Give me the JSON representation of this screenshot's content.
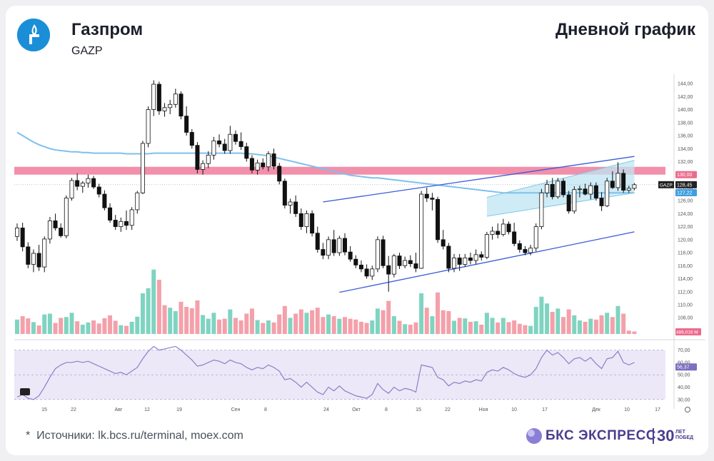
{
  "header": {
    "company": "Газпром",
    "ticker": "GAZP",
    "chart_title": "Дневной график"
  },
  "footer": {
    "source_mark": "*",
    "source": "Источники: lk.bcs.ru/terminal, moex.com",
    "brand": "БКС ЭКСПРЕСС",
    "brand_30": "30",
    "brand_30_sub": "ЛЕТ ПОБЕД"
  },
  "colors": {
    "up": "#ffffff",
    "down": "#111111",
    "vol_up": "#7fd4c1",
    "vol_down": "#f4a0aa",
    "ma": "#7ec0ee",
    "channel": "#3a5bd9",
    "resistance_zone": "#ee6a8f",
    "rsi": "#8b7fc6",
    "logo": "#1a8fd8",
    "brand": "#4a3f8f"
  },
  "chart_data": {
    "type": "candlestick",
    "price_axis": {
      "ticks": [
        "144,00",
        "142,00",
        "140,00",
        "138,00",
        "136,00",
        "134,00",
        "132,00",
        "130,00",
        "128,00",
        "126,00",
        "124,00",
        "122,00",
        "120,00",
        "118,00",
        "116,00",
        "114,00",
        "112,00",
        "110,00",
        "108,00",
        "106,00"
      ],
      "range": [
        105.5,
        145
      ]
    },
    "x_axis": {
      "ticks": [
        "15",
        "22",
        "Авг",
        "12",
        "19",
        "Сен",
        "8",
        "24",
        "Окт",
        "8",
        "15",
        "22",
        "Ноя",
        "10",
        "17",
        "Дек",
        "10",
        "17"
      ]
    },
    "last_price_label": {
      "text": "GAZP",
      "value": "128,45"
    },
    "level_labels": [
      {
        "value": "130,00"
      },
      {
        "value": "127,22"
      }
    ],
    "volume_label": "486,016 M",
    "candles": [
      [
        120.5,
        122.5,
        119.8,
        121.8
      ],
      [
        121.8,
        122.6,
        118.2,
        118.9
      ],
      [
        118.9,
        119.6,
        115.6,
        116.2
      ],
      [
        116.2,
        118.5,
        115.0,
        117.9
      ],
      [
        117.9,
        119.2,
        115.2,
        115.8
      ],
      [
        115.8,
        120.5,
        115.0,
        120.1
      ],
      [
        120.1,
        123.5,
        119.4,
        122.9
      ],
      [
        122.9,
        124.0,
        121.4,
        121.8
      ],
      [
        121.8,
        122.5,
        120.3,
        120.6
      ],
      [
        120.6,
        126.8,
        120.2,
        126.4
      ],
      [
        126.4,
        129.5,
        126.0,
        129.1
      ],
      [
        129.1,
        130.2,
        127.6,
        128.2
      ],
      [
        128.2,
        129.0,
        127.2,
        128.7
      ],
      [
        128.7,
        130.0,
        128.0,
        129.4
      ],
      [
        129.4,
        129.8,
        127.8,
        128.1
      ],
      [
        128.1,
        128.6,
        126.5,
        127.0
      ],
      [
        127.0,
        127.6,
        124.5,
        124.9
      ],
      [
        124.9,
        125.6,
        122.6,
        123.0
      ],
      [
        123.0,
        123.8,
        121.5,
        122.0
      ],
      [
        122.0,
        123.4,
        121.2,
        122.8
      ],
      [
        122.8,
        124.5,
        121.5,
        122.2
      ],
      [
        122.2,
        125.0,
        121.5,
        124.6
      ],
      [
        124.6,
        127.5,
        124.0,
        127.2
      ],
      [
        127.2,
        135.2,
        127.0,
        134.8
      ],
      [
        134.8,
        140.5,
        134.2,
        140.0
      ],
      [
        140.0,
        144.5,
        139.0,
        143.9
      ],
      [
        143.9,
        144.3,
        139.2,
        139.8
      ],
      [
        139.8,
        141.0,
        138.9,
        140.3
      ],
      [
        140.3,
        141.5,
        139.3,
        140.8
      ],
      [
        140.8,
        143.2,
        140.3,
        142.4
      ],
      [
        142.4,
        142.8,
        138.5,
        139.0
      ],
      [
        139.0,
        140.5,
        136.0,
        136.5
      ],
      [
        136.5,
        137.0,
        134.0,
        134.5
      ],
      [
        134.5,
        135.0,
        130.2,
        130.8
      ],
      [
        130.8,
        132.2,
        130.0,
        131.7
      ],
      [
        131.7,
        133.6,
        131.0,
        133.0
      ],
      [
        133.0,
        135.8,
        132.3,
        135.2
      ],
      [
        135.2,
        136.2,
        134.2,
        134.7
      ],
      [
        134.7,
        135.5,
        133.2,
        133.7
      ],
      [
        133.7,
        137.5,
        133.2,
        136.2
      ],
      [
        136.2,
        136.8,
        134.6,
        135.1
      ],
      [
        135.1,
        136.5,
        133.8,
        134.3
      ],
      [
        134.3,
        134.9,
        132.0,
        132.5
      ],
      [
        132.5,
        133.0,
        130.2,
        130.7
      ],
      [
        130.7,
        132.3,
        130.0,
        131.8
      ],
      [
        131.8,
        132.5,
        130.8,
        131.2
      ],
      [
        131.2,
        133.6,
        130.5,
        133.2
      ],
      [
        133.2,
        134.0,
        130.8,
        131.3
      ],
      [
        131.3,
        131.8,
        128.5,
        129.0
      ],
      [
        129.0,
        129.4,
        124.8,
        125.3
      ],
      [
        125.3,
        126.3,
        124.0,
        125.8
      ],
      [
        125.8,
        126.8,
        123.5,
        124.0
      ],
      [
        124.0,
        124.8,
        121.5,
        122.0
      ],
      [
        122.0,
        124.5,
        121.0,
        124.0
      ],
      [
        124.0,
        124.5,
        120.5,
        121.0
      ],
      [
        121.0,
        122.0,
        118.0,
        118.5
      ],
      [
        118.5,
        119.5,
        117.0,
        117.6
      ],
      [
        117.6,
        120.5,
        117.0,
        120.0
      ],
      [
        120.0,
        121.5,
        117.5,
        118.0
      ],
      [
        118.0,
        120.6,
        117.5,
        120.2
      ],
      [
        120.2,
        121.0,
        117.6,
        118.1
      ],
      [
        118.1,
        119.0,
        116.6,
        117.0
      ],
      [
        117.0,
        117.6,
        115.6,
        116.1
      ],
      [
        116.1,
        116.8,
        115.0,
        115.5
      ],
      [
        115.5,
        116.2,
        114.0,
        114.4
      ],
      [
        114.4,
        116.0,
        113.8,
        115.5
      ],
      [
        115.5,
        120.5,
        115.0,
        120.0
      ],
      [
        120.0,
        120.6,
        115.6,
        116.0
      ],
      [
        116.0,
        117.5,
        112.0,
        114.7
      ],
      [
        114.7,
        117.8,
        114.2,
        117.5
      ],
      [
        117.5,
        118.0,
        115.5,
        116.0
      ],
      [
        116.0,
        117.4,
        115.6,
        116.8
      ],
      [
        116.8,
        117.6,
        115.8,
        116.3
      ],
      [
        116.3,
        118.0,
        115.0,
        115.6
      ],
      [
        115.6,
        127.5,
        115.5,
        127.0
      ],
      [
        127.0,
        128.0,
        125.8,
        126.4
      ],
      [
        126.4,
        127.2,
        124.5,
        126.2
      ],
      [
        126.2,
        126.6,
        119.5,
        120.0
      ],
      [
        120.0,
        121.5,
        118.5,
        119.0
      ],
      [
        119.0,
        119.5,
        115.0,
        115.6
      ],
      [
        115.6,
        117.8,
        115.0,
        117.2
      ],
      [
        117.2,
        117.8,
        115.2,
        116.2
      ],
      [
        116.2,
        117.8,
        115.8,
        117.2
      ],
      [
        117.2,
        118.0,
        116.2,
        116.8
      ],
      [
        116.8,
        118.5,
        116.2,
        117.7
      ],
      [
        117.7,
        118.2,
        116.8,
        117.3
      ],
      [
        117.3,
        121.2,
        117.0,
        120.8
      ],
      [
        120.8,
        122.0,
        120.0,
        121.3
      ],
      [
        121.3,
        122.5,
        120.2,
        120.8
      ],
      [
        120.8,
        123.2,
        120.5,
        122.4
      ],
      [
        122.4,
        122.8,
        120.8,
        121.2
      ],
      [
        121.2,
        122.6,
        119.0,
        119.4
      ],
      [
        119.4,
        119.9,
        118.0,
        118.5
      ],
      [
        118.5,
        119.0,
        117.6,
        118.0
      ],
      [
        118.0,
        119.2,
        117.6,
        118.7
      ],
      [
        118.7,
        122.5,
        118.2,
        122.0
      ],
      [
        122.0,
        127.8,
        121.6,
        127.2
      ],
      [
        127.2,
        129.2,
        126.5,
        128.5
      ],
      [
        128.5,
        129.5,
        126.2,
        126.6
      ],
      [
        126.6,
        129.5,
        126.3,
        129.0
      ],
      [
        129.0,
        129.4,
        126.5,
        126.9
      ],
      [
        126.9,
        127.5,
        124.0,
        124.4
      ],
      [
        124.4,
        128.2,
        124.0,
        127.7
      ],
      [
        127.7,
        128.3,
        126.5,
        127.8
      ],
      [
        127.8,
        128.6,
        126.8,
        127.0
      ],
      [
        127.0,
        128.8,
        126.2,
        128.3
      ],
      [
        128.3,
        128.8,
        126.0,
        126.4
      ],
      [
        126.4,
        127.3,
        124.4,
        125.2
      ],
      [
        125.2,
        129.5,
        125.0,
        129.0
      ],
      [
        129.0,
        130.5,
        127.8,
        128.0
      ],
      [
        128.0,
        131.9,
        127.5,
        130.2
      ],
      [
        130.2,
        130.8,
        127.2,
        127.6
      ],
      [
        127.6,
        128.3,
        127.2,
        127.9
      ],
      [
        127.9,
        128.7,
        127.6,
        128.45
      ]
    ],
    "volume": [
      [
        8.5,
        "up"
      ],
      [
        10.5,
        "down"
      ],
      [
        9.2,
        "down"
      ],
      [
        7.0,
        "up"
      ],
      [
        5.0,
        "down"
      ],
      [
        11.5,
        "up"
      ],
      [
        12.0,
        "up"
      ],
      [
        6.5,
        "down"
      ],
      [
        9.5,
        "down"
      ],
      [
        10.0,
        "up"
      ],
      [
        12.5,
        "up"
      ],
      [
        7.5,
        "down"
      ],
      [
        5.5,
        "up"
      ],
      [
        6.8,
        "up"
      ],
      [
        8.0,
        "down"
      ],
      [
        6.2,
        "down"
      ],
      [
        9.3,
        "down"
      ],
      [
        11.0,
        "down"
      ],
      [
        7.8,
        "down"
      ],
      [
        5.2,
        "up"
      ],
      [
        4.8,
        "down"
      ],
      [
        7.2,
        "up"
      ],
      [
        10.2,
        "up"
      ],
      [
        24.0,
        "up"
      ],
      [
        27.0,
        "up"
      ],
      [
        38.0,
        "up"
      ],
      [
        32.0,
        "down"
      ],
      [
        17.0,
        "down"
      ],
      [
        15.5,
        "up"
      ],
      [
        13.5,
        "up"
      ],
      [
        19.0,
        "down"
      ],
      [
        16.0,
        "down"
      ],
      [
        15.2,
        "down"
      ],
      [
        19.8,
        "down"
      ],
      [
        11.2,
        "up"
      ],
      [
        9.0,
        "up"
      ],
      [
        12.5,
        "up"
      ],
      [
        8.5,
        "down"
      ],
      [
        9.0,
        "down"
      ],
      [
        14.5,
        "up"
      ],
      [
        9.5,
        "down"
      ],
      [
        8.0,
        "down"
      ],
      [
        12.0,
        "down"
      ],
      [
        15.0,
        "down"
      ],
      [
        8.2,
        "up"
      ],
      [
        6.5,
        "down"
      ],
      [
        8.0,
        "up"
      ],
      [
        6.8,
        "down"
      ],
      [
        11.5,
        "down"
      ],
      [
        16.5,
        "down"
      ],
      [
        9.5,
        "up"
      ],
      [
        12.0,
        "down"
      ],
      [
        14.5,
        "down"
      ],
      [
        12.5,
        "up"
      ],
      [
        14.0,
        "down"
      ],
      [
        15.5,
        "down"
      ],
      [
        10.0,
        "down"
      ],
      [
        11.5,
        "up"
      ],
      [
        10.5,
        "down"
      ],
      [
        9.0,
        "up"
      ],
      [
        10.0,
        "down"
      ],
      [
        9.0,
        "down"
      ],
      [
        8.5,
        "down"
      ],
      [
        7.2,
        "down"
      ],
      [
        6.5,
        "down"
      ],
      [
        8.0,
        "up"
      ],
      [
        15.0,
        "up"
      ],
      [
        14.0,
        "down"
      ],
      [
        19.5,
        "down"
      ],
      [
        10.5,
        "up"
      ],
      [
        7.8,
        "down"
      ],
      [
        5.8,
        "up"
      ],
      [
        5.5,
        "down"
      ],
      [
        6.8,
        "down"
      ],
      [
        24.0,
        "up"
      ],
      [
        15.5,
        "down"
      ],
      [
        10.5,
        "up"
      ],
      [
        24.5,
        "down"
      ],
      [
        14.0,
        "down"
      ],
      [
        13.5,
        "down"
      ],
      [
        7.8,
        "up"
      ],
      [
        9.5,
        "down"
      ],
      [
        9.2,
        "up"
      ],
      [
        7.2,
        "down"
      ],
      [
        7.5,
        "up"
      ],
      [
        5.5,
        "down"
      ],
      [
        12.5,
        "up"
      ],
      [
        9.5,
        "up"
      ],
      [
        6.8,
        "down"
      ],
      [
        9.5,
        "up"
      ],
      [
        7.0,
        "down"
      ],
      [
        8.0,
        "down"
      ],
      [
        6.0,
        "down"
      ],
      [
        5.2,
        "down"
      ],
      [
        4.8,
        "up"
      ],
      [
        16.0,
        "up"
      ],
      [
        22.0,
        "up"
      ],
      [
        18.0,
        "up"
      ],
      [
        13.0,
        "down"
      ],
      [
        15.0,
        "up"
      ],
      [
        10.0,
        "down"
      ],
      [
        14.5,
        "down"
      ],
      [
        11.0,
        "up"
      ],
      [
        8.0,
        "up"
      ],
      [
        7.2,
        "down"
      ],
      [
        9.0,
        "up"
      ],
      [
        8.5,
        "down"
      ],
      [
        11.0,
        "down"
      ],
      [
        12.5,
        "up"
      ],
      [
        10.0,
        "down"
      ],
      [
        16.5,
        "up"
      ],
      [
        12.0,
        "down"
      ],
      [
        2.0,
        "down"
      ],
      [
        1.5,
        "down"
      ]
    ],
    "ma200": [
      136.5,
      136.0,
      135.5,
      135.0,
      134.6,
      134.3,
      134.0,
      133.8,
      133.7,
      133.6,
      133.5,
      133.5,
      133.4,
      133.4,
      133.3,
      133.3,
      133.3,
      133.3,
      133.3,
      133.3,
      133.2,
      133.2,
      133.2,
      133.2,
      133.2,
      133.3,
      133.3,
      133.3,
      133.3,
      133.3,
      133.3,
      133.3,
      133.3,
      133.3,
      133.3,
      133.3,
      133.3,
      133.3,
      133.3,
      133.3,
      133.3,
      133.3,
      133.2,
      133.2,
      133.1,
      133.0,
      132.9,
      132.7,
      132.5,
      132.3,
      132.1,
      131.9,
      131.7,
      131.5,
      131.3,
      131.1,
      130.9,
      130.7,
      130.5,
      130.3,
      130.1,
      129.9,
      129.8,
      129.7,
      129.6,
      129.5,
      129.5,
      129.4,
      129.3,
      129.2,
      129.1,
      129.0,
      128.9,
      128.8,
      128.7,
      128.6,
      128.5,
      128.4,
      128.3,
      128.2,
      128.1,
      128.0,
      127.9,
      127.8,
      127.7,
      127.6,
      127.5,
      127.4,
      127.3,
      127.2,
      127.2,
      127.2,
      127.2,
      127.2,
      127.2,
      127.2,
      127.2,
      127.2,
      127.2,
      127.2,
      127.2,
      127.2,
      127.2,
      127.2,
      127.2,
      127.2,
      127.2,
      127.2,
      127.2,
      127.2,
      127.2,
      127.2,
      127.2,
      127.2
    ],
    "channel": {
      "upper": [
        [
          56,
          125.8
        ],
        [
          113,
          132.8
        ]
      ],
      "lower": [
        [
          59,
          111.9
        ],
        [
          113,
          121.2
        ]
      ],
      "inner_upper": [
        [
          86,
          126.5
        ],
        [
          113,
          132.2
        ]
      ],
      "inner_lower": [
        [
          86,
          123.6
        ],
        [
          113,
          127.2
        ]
      ]
    },
    "resistance_zone": [
      130.0,
      131.2
    ],
    "rsi": {
      "ticks": [
        "70,00",
        "60,00",
        "56,37",
        "50,00",
        "40,00",
        "30,00"
      ],
      "range": [
        27,
        75
      ],
      "levels": [
        70,
        30
      ],
      "current": 56.37,
      "values": [
        32,
        34,
        31,
        30,
        33,
        40,
        48,
        55,
        58,
        60,
        60,
        61,
        60,
        61,
        59,
        57,
        55,
        53,
        51,
        52,
        50,
        53,
        56,
        63,
        69,
        73,
        70,
        71,
        72,
        73,
        70,
        66,
        62,
        57,
        58,
        60,
        62,
        61,
        59,
        62,
        60,
        59,
        56,
        54,
        56,
        55,
        58,
        56,
        53,
        46,
        47,
        44,
        40,
        44,
        40,
        36,
        34,
        40,
        37,
        41,
        37,
        35,
        33,
        32,
        31,
        34,
        43,
        38,
        35,
        40,
        37,
        39,
        38,
        36,
        58,
        57,
        56,
        48,
        46,
        41,
        44,
        43,
        45,
        44,
        46,
        45,
        52,
        54,
        53,
        56,
        54,
        51,
        49,
        48,
        50,
        55,
        64,
        70,
        66,
        68,
        64,
        59,
        63,
        64,
        61,
        64,
        59,
        55,
        63,
        64,
        69,
        60,
        58,
        60
      ]
    }
  }
}
